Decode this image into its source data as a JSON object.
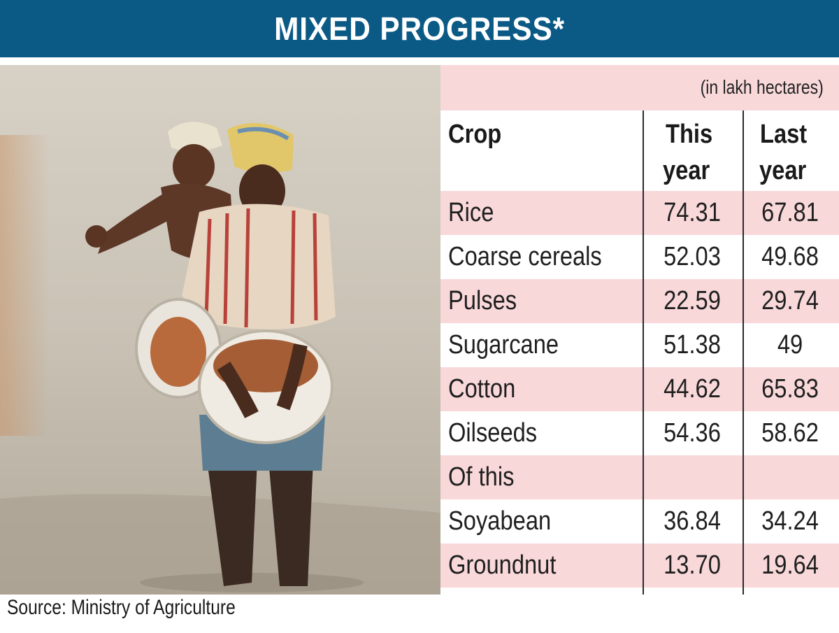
{
  "header": {
    "title": "MIXED PROGRESS*"
  },
  "unit_note": "(in lakh hectares)",
  "columns": {
    "crop": "Crop",
    "this_year_1": "This",
    "this_year_2": "year",
    "last_year_1": "Last",
    "last_year_2": "year"
  },
  "rows": [
    {
      "crop": "Rice",
      "this_year": "74.31",
      "last_year": "67.81"
    },
    {
      "crop": "Coarse cereals",
      "this_year": "52.03",
      "last_year": "49.68"
    },
    {
      "crop": "Pulses",
      "this_year": "22.59",
      "last_year": "29.74"
    },
    {
      "crop": "Sugarcane",
      "this_year": "51.38",
      "last_year": "49"
    },
    {
      "crop": "Cotton",
      "this_year": "44.62",
      "last_year": "65.83"
    },
    {
      "crop": "Oilseeds",
      "this_year": "54.36",
      "last_year": "58.62"
    },
    {
      "crop": "Of this",
      "this_year": "",
      "last_year": ""
    },
    {
      "crop": "Soyabean",
      "this_year": "36.84",
      "last_year": "34.24"
    },
    {
      "crop": "Groundnut",
      "this_year": "13.70",
      "last_year": "19.64"
    }
  ],
  "source": "Source: Ministry of Agriculture",
  "colors": {
    "header_bg": "#0b5a86",
    "row_pink": "#f9d8da",
    "header_text": "#ffffff"
  },
  "photo": {
    "subject": "two-farmers-sowing-seed-in-flooded-field"
  },
  "chart_data": {
    "type": "table",
    "title": "MIXED PROGRESS*",
    "unit": "(in lakh hectares)",
    "headers": [
      "Crop",
      "This year",
      "Last year"
    ],
    "rows": [
      [
        "Rice",
        74.31,
        67.81
      ],
      [
        "Coarse cereals",
        52.03,
        49.68
      ],
      [
        "Pulses",
        22.59,
        29.74
      ],
      [
        "Sugarcane",
        51.38,
        49
      ],
      [
        "Cotton",
        44.62,
        65.83
      ],
      [
        "Oilseeds",
        54.36,
        58.62
      ],
      [
        "Of this",
        null,
        null
      ],
      [
        "Soyabean",
        36.84,
        34.24
      ],
      [
        "Groundnut",
        13.7,
        19.64
      ]
    ],
    "source": "Source: Ministry of Agriculture"
  }
}
